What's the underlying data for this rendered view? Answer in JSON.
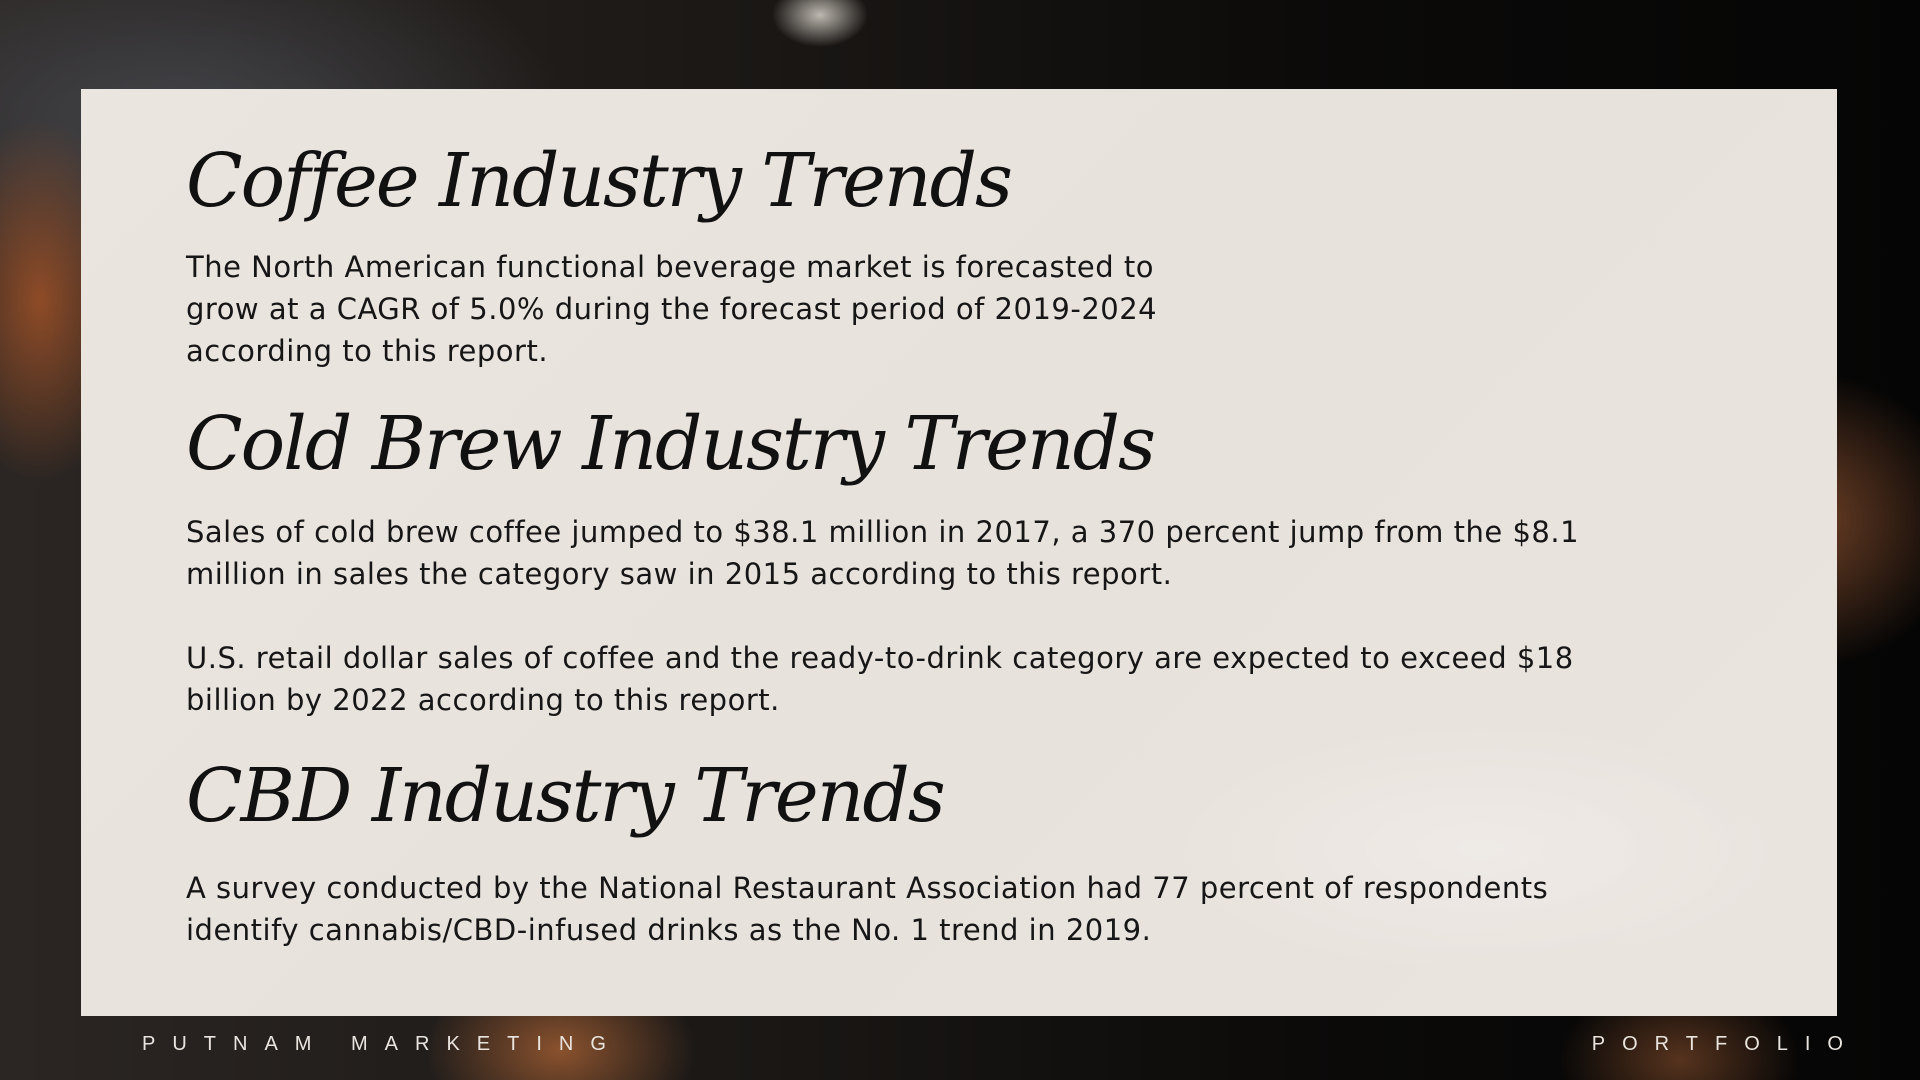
{
  "sections": [
    {
      "title": "Coffee Industry Trends",
      "paragraphs": [
        "The North American functional beverage market is forecasted to grow at a CAGR of 5.0% during the forecast period of 2019-2024 according to this report."
      ]
    },
    {
      "title": "Cold Brew Industry Trends",
      "paragraphs": [
        "Sales of cold brew coffee jumped to $38.1 million in 2017, a 370 percent jump from the $8.1 million in sales the category saw in 2015 according to this report.",
        "U.S. retail dollar sales of coffee and the ready-to-drink category are expected to exceed $18 billion by 2022 according to this report."
      ]
    },
    {
      "title": "CBD Industry Trends",
      "paragraphs": [
        "A survey conducted by the National Restaurant Association had 77 percent of respondents identify cannabis/CBD-infused drinks as the No. 1 trend in 2019."
      ]
    }
  ],
  "footer": {
    "left": "PUTNAM MARKETING",
    "right": "PORTFOLIO"
  }
}
